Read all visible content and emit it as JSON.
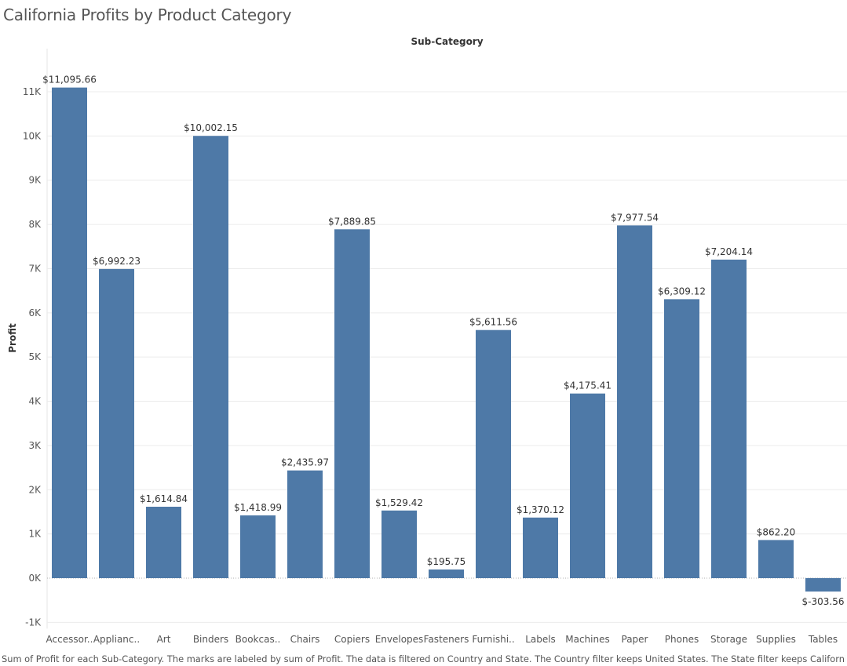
{
  "title": "California Profits by Product Category",
  "x_header": "Sub-Category",
  "y_title": "Profit",
  "footer": "Sum of Profit for each Sub-Category.  The marks are labeled by sum of Profit. The data is filtered on Country and State. The Country filter keeps United States. The State filter keeps California.",
  "colors": {
    "bar": "#4e79a7",
    "grid": "#ececec",
    "zero_line": "#b0b0b0"
  },
  "chart_data": {
    "type": "bar",
    "xlabel": "Sub-Category",
    "ylabel": "Profit",
    "ylim": [
      -1000,
      11500
    ],
    "yticks": [
      -1000,
      0,
      1000,
      2000,
      3000,
      4000,
      5000,
      6000,
      7000,
      8000,
      9000,
      10000,
      11000
    ],
    "ytick_labels": [
      "-1K",
      "0K",
      "1K",
      "2K",
      "3K",
      "4K",
      "5K",
      "6K",
      "7K",
      "8K",
      "9K",
      "10K",
      "11K"
    ],
    "grid": true,
    "categories": [
      "Accessor..",
      "Applianc..",
      "Art",
      "Binders",
      "Bookcas..",
      "Chairs",
      "Copiers",
      "Envelopes",
      "Fasteners",
      "Furnishi..",
      "Labels",
      "Machines",
      "Paper",
      "Phones",
      "Storage",
      "Supplies",
      "Tables"
    ],
    "values": [
      11095.66,
      6992.23,
      1614.84,
      10002.15,
      1418.99,
      2435.97,
      7889.85,
      1529.42,
      195.75,
      5611.56,
      1370.12,
      4175.41,
      7977.54,
      6309.12,
      7204.14,
      862.2,
      -303.56
    ],
    "value_labels": [
      "$11,095.66",
      "$6,992.23",
      "$1,614.84",
      "$10,002.15",
      "$1,418.99",
      "$2,435.97",
      "$7,889.85",
      "$1,529.42",
      "$195.75",
      "$5,611.56",
      "$1,370.12",
      "$4,175.41",
      "$7,977.54",
      "$6,309.12",
      "$7,204.14",
      "$862.20",
      "$-303.56"
    ]
  }
}
